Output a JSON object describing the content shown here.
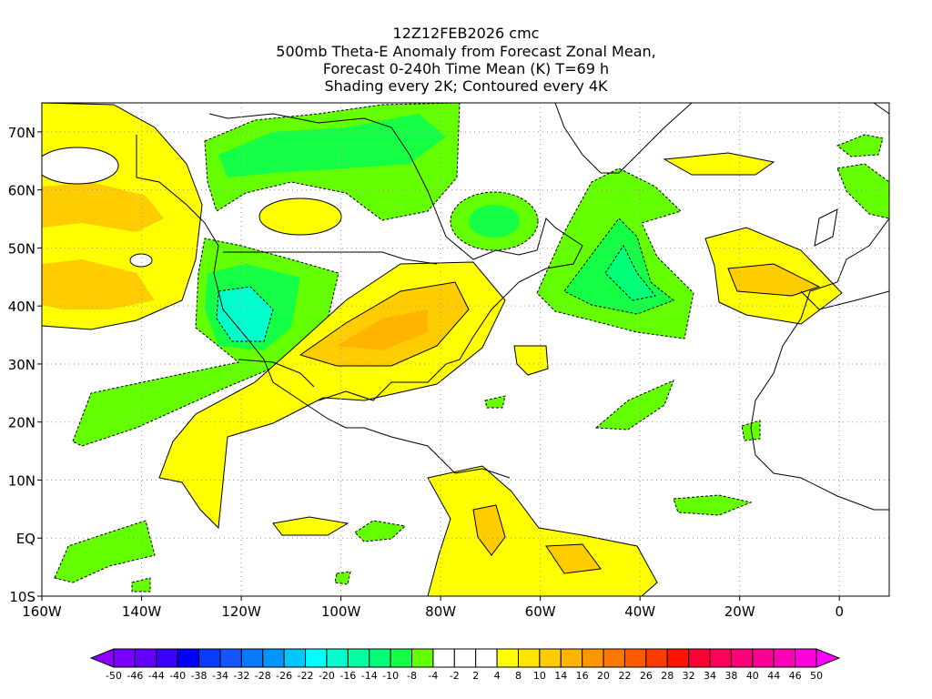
{
  "title": {
    "lines": [
      "12Z12FEB2026 cmc",
      "500mb Theta-E Anomaly from Forecast Zonal Mean,",
      "Forecast 0-240h Time Mean (K) T=69 h",
      "Shading every 2K; Contoured every 4K"
    ]
  },
  "map": {
    "lon_range": [
      -160,
      10
    ],
    "lat_range": [
      -10,
      75
    ],
    "x_ticks": [
      {
        "lon": -160,
        "label": "160W"
      },
      {
        "lon": -140,
        "label": "140W"
      },
      {
        "lon": -120,
        "label": "120W"
      },
      {
        "lon": -100,
        "label": "100W"
      },
      {
        "lon": -80,
        "label": "80W"
      },
      {
        "lon": -60,
        "label": "60W"
      },
      {
        "lon": -40,
        "label": "40W"
      },
      {
        "lon": -20,
        "label": "20W"
      },
      {
        "lon": 0,
        "label": "0"
      }
    ],
    "y_ticks": [
      {
        "lat": 70,
        "label": "70N"
      },
      {
        "lat": 60,
        "label": "60N"
      },
      {
        "lat": 50,
        "label": "50N"
      },
      {
        "lat": 40,
        "label": "40N"
      },
      {
        "lat": 30,
        "label": "30N"
      },
      {
        "lat": 20,
        "label": "20N"
      },
      {
        "lat": 10,
        "label": "10N"
      },
      {
        "lat": 0,
        "label": "EQ"
      },
      {
        "lat": -10,
        "label": "10S"
      }
    ]
  },
  "colorbar": {
    "labels": [
      "-50",
      "-46",
      "-44",
      "-40",
      "-38",
      "-34",
      "-32",
      "-28",
      "-26",
      "-22",
      "-20",
      "-16",
      "-14",
      "-10",
      "-8",
      "-4",
      "-2",
      "2",
      "4",
      "8",
      "10",
      "14",
      "16",
      "20",
      "22",
      "26",
      "28",
      "32",
      "34",
      "38",
      "40",
      "44",
      "46",
      "50"
    ],
    "low_arrow_color": "#8c00ff",
    "high_arrow_color": "#ff00ff",
    "colors": [
      "#7a00ff",
      "#6400ff",
      "#3c00ff",
      "#0000ff",
      "#0a3cff",
      "#1455ff",
      "#0a78ff",
      "#0096ff",
      "#00c8ff",
      "#00ffff",
      "#00ffcc",
      "#00ffa0",
      "#00ff78",
      "#14ff46",
      "#64ff00",
      "#ffffff",
      "#ffffff",
      "#ffffff",
      "#ffff00",
      "#ffe600",
      "#ffcc00",
      "#ffb400",
      "#ff9600",
      "#ff7800",
      "#ff5a00",
      "#ff3c00",
      "#ff1400",
      "#ff0032",
      "#ff005a",
      "#ff0078",
      "#ff0096",
      "#ff00b4",
      "#ff00dc"
    ]
  }
}
